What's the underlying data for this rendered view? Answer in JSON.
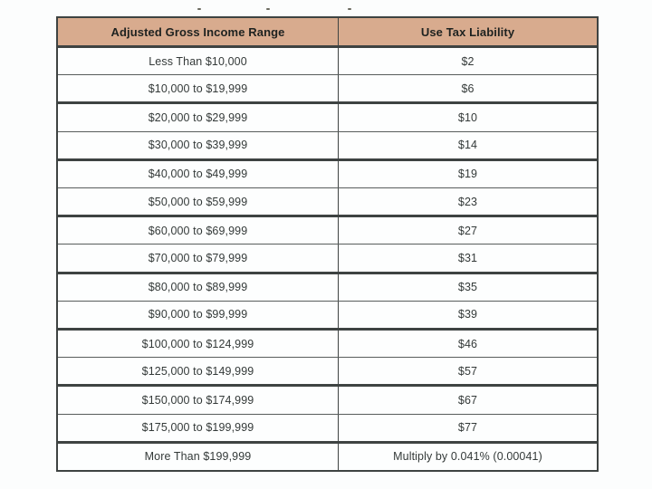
{
  "chart_data": {
    "type": "table",
    "columns": [
      "Adjusted Gross Income Range",
      "Use Tax Liability"
    ],
    "rows": [
      [
        "Less Than $10,000",
        "$2"
      ],
      [
        "$10,000 to $19,999",
        "$6"
      ],
      [
        "$20,000 to $29,999",
        "$10"
      ],
      [
        "$30,000 to $39,999",
        "$14"
      ],
      [
        "$40,000 to $49,999",
        "$19"
      ],
      [
        "$50,000 to $59,999",
        "$23"
      ],
      [
        "$60,000 to $69,999",
        "$27"
      ],
      [
        "$70,000 to $79,999",
        "$31"
      ],
      [
        "$80,000 to $89,999",
        "$35"
      ],
      [
        "$90,000 to $99,999",
        "$39"
      ],
      [
        "$100,000 to $124,999",
        "$46"
      ],
      [
        "$125,000 to $149,999",
        "$57"
      ],
      [
        "$150,000 to $174,999",
        "$67"
      ],
      [
        "$175,000 to $199,999",
        "$77"
      ],
      [
        "More Than $199,999",
        "Multiply by 0.041% (0.00041)"
      ]
    ],
    "title": "",
    "layout_hints": {
      "header_fill": "#d8ab8e",
      "border_color": "#3e4342",
      "text_align": "center"
    }
  },
  "colors": {
    "header_bg": "#d8ab8e",
    "border_dark": "#3e4342",
    "border_thin": "#585d5c",
    "cell_text": "#343a39",
    "page_bg": "#fcfdfd"
  }
}
